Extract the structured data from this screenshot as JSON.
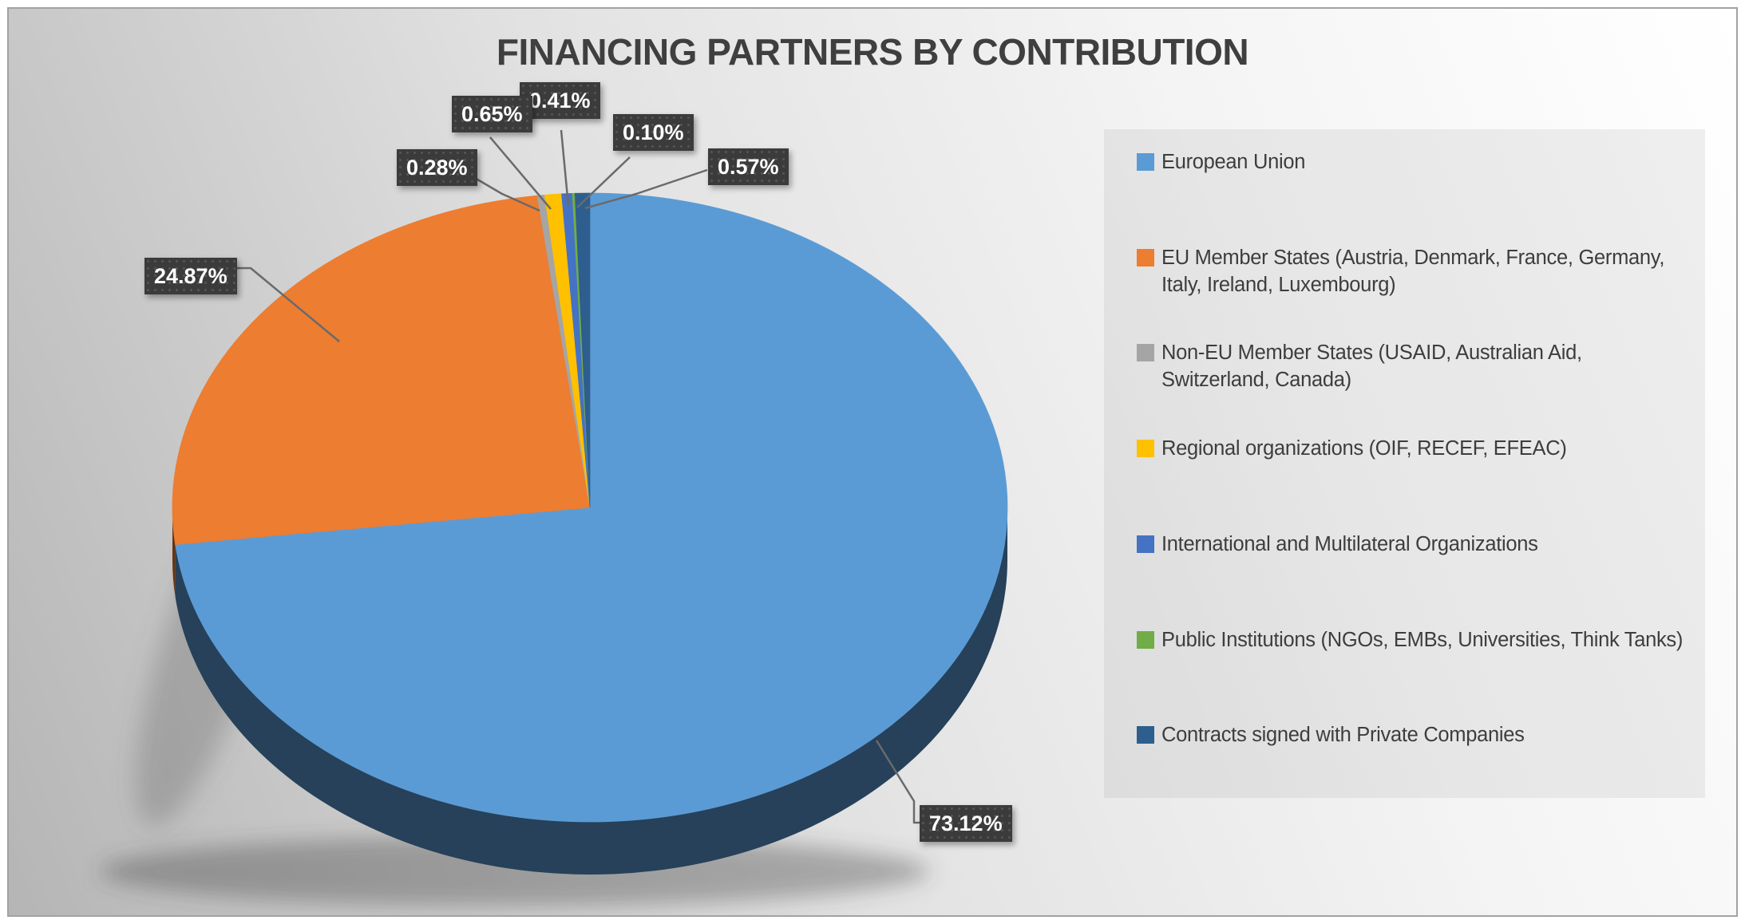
{
  "title": "FINANCING PARTNERS BY CONTRIBUTION",
  "chart_data": {
    "type": "pie",
    "style": "3d-pie",
    "title": "FINANCING PARTNERS BY CONTRIBUTION",
    "legend_position": "right",
    "data_label_format": "percent, 2 decimals, external with leader lines",
    "start_angle_deg": 0,
    "direction": "clockwise",
    "slices": [
      {
        "label": "European Union",
        "value_pct": 73.12,
        "color": "#5B9BD5"
      },
      {
        "label": "EU Member States (Austria, Denmark, France, Germany, Italy, Ireland, Luxembourg)",
        "value_pct": 24.87,
        "color": "#ED7D31"
      },
      {
        "label": "Non-EU Member States  (USAID, Australian Aid, Switzerland, Canada)",
        "value_pct": 0.28,
        "color": "#A5A5A5"
      },
      {
        "label": "Regional organizations (OIF, RECEF, EFEAC)",
        "value_pct": 0.65,
        "color": "#FFC000"
      },
      {
        "label": "International and Multilateral Organizations",
        "value_pct": 0.41,
        "color": "#4472C4"
      },
      {
        "label": "Public Institutions (NGOs, EMBs, Universities, Think Tanks)",
        "value_pct": 0.1,
        "color": "#70AD47"
      },
      {
        "label": "Contracts signed with Private Companies",
        "value_pct": 0.57,
        "color": "#2E5E8E"
      }
    ]
  },
  "data_labels": [
    {
      "slice": 3,
      "text": "0.65%"
    },
    {
      "slice": 4,
      "text": "0.41%"
    },
    {
      "slice": 5,
      "text": "0.10%"
    },
    {
      "slice": 6,
      "text": "0.57%"
    },
    {
      "slice": 2,
      "text": "0.28%"
    },
    {
      "slice": 1,
      "text": "24.87%"
    },
    {
      "slice": 0,
      "text": "73.12%"
    }
  ],
  "legend": {
    "items": [
      {
        "label": "European Union",
        "color": "#5B9BD5"
      },
      {
        "label": "EU Member States (Austria, Denmark, France, Germany, Italy, Ireland, Luxembourg)",
        "color": "#ED7D31"
      },
      {
        "label": "Non-EU Member States  (USAID, Australian Aid, Switzerland, Canada)",
        "color": "#A5A5A5"
      },
      {
        "label": "Regional organizations (OIF, RECEF, EFEAC)",
        "color": "#FFC000"
      },
      {
        "label": "International and Multilateral Organizations",
        "color": "#4472C4"
      },
      {
        "label": "Public Institutions (NGOs, EMBs, Universities, Think Tanks)",
        "color": "#70AD47"
      },
      {
        "label": "Contracts signed with Private Companies",
        "color": "#2E5E8E"
      }
    ]
  }
}
